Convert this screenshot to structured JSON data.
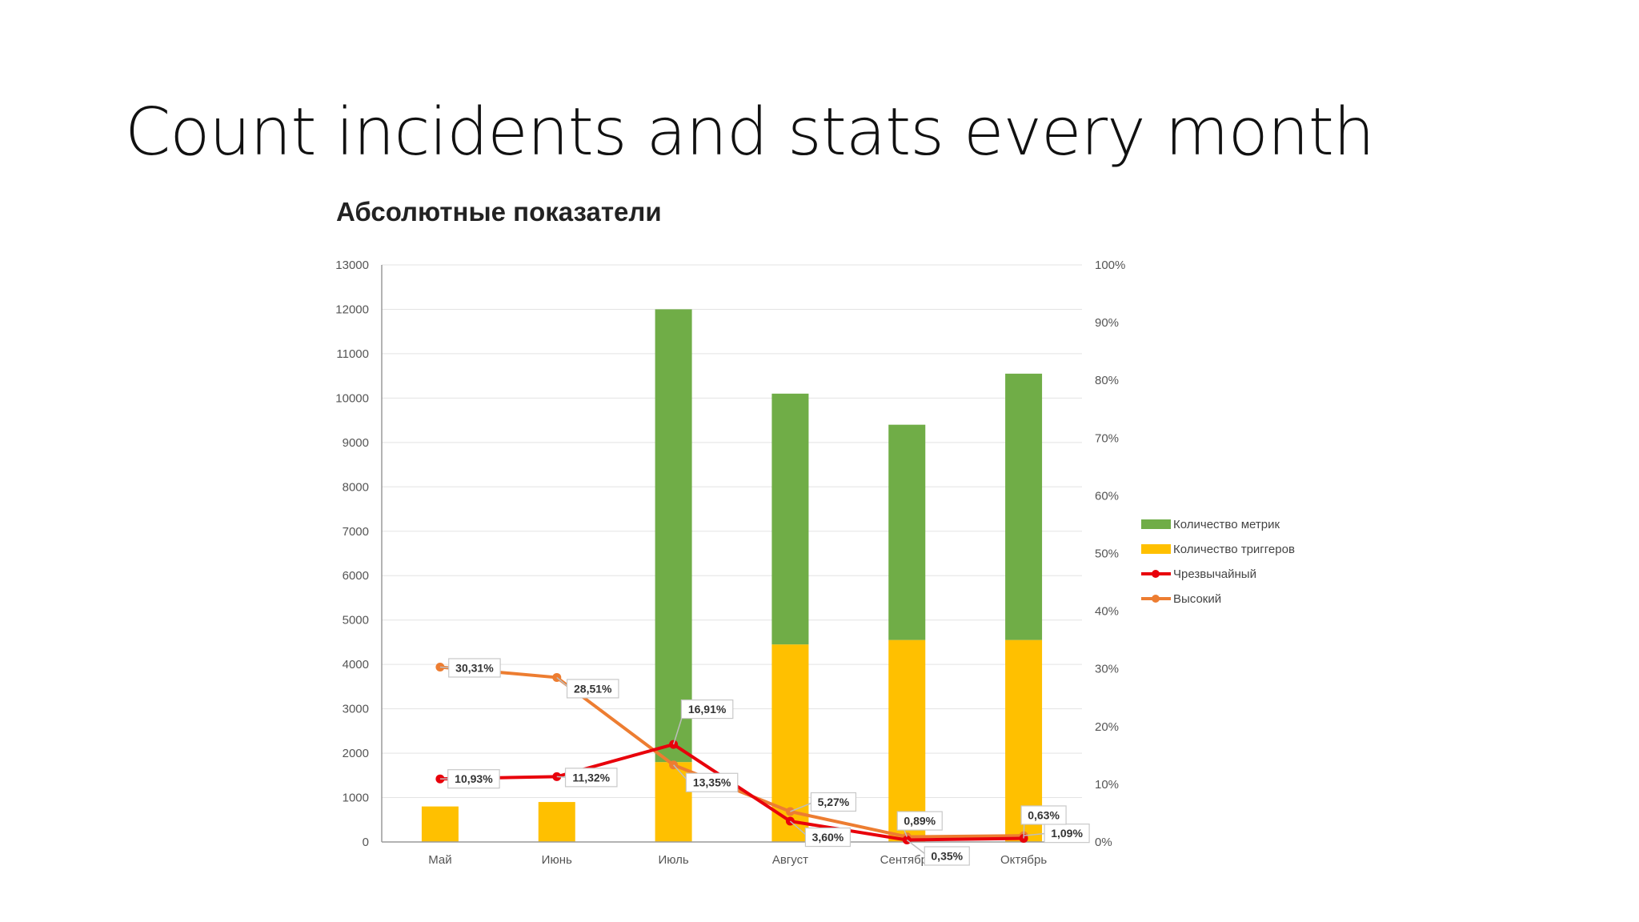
{
  "slide": {
    "title": "Count incidents and stats every month"
  },
  "chart_data": {
    "type": "bar",
    "title": "Абсолютные показатели",
    "categories": [
      "Май",
      "Июнь",
      "Июль",
      "Август",
      "Сентябрь",
      "Октябрь"
    ],
    "ylim": [
      0,
      13000
    ],
    "y2lim": [
      0,
      100
    ],
    "yticks": [
      "0",
      "1000",
      "2000",
      "3000",
      "4000",
      "5000",
      "6000",
      "7000",
      "8000",
      "9000",
      "10000",
      "11000",
      "12000",
      "13000"
    ],
    "y2ticks": [
      "0%",
      "10%",
      "20%",
      "30%",
      "40%",
      "50%",
      "60%",
      "70%",
      "80%",
      "90%",
      "100%"
    ],
    "grid": true,
    "legend_position": "right",
    "series": [
      {
        "name": "Количество метрик",
        "kind": "bar",
        "stack": "total",
        "color": "#70ad47",
        "values": [
          0,
          0,
          10200,
          5650,
          4850,
          6000
        ]
      },
      {
        "name": "Количество триггеров",
        "kind": "bar",
        "stack": "total",
        "color": "#ffc000",
        "values": [
          800,
          900,
          1800,
          4450,
          4550,
          4550
        ]
      },
      {
        "name": "Чрезвычайный",
        "kind": "line",
        "axis": "right",
        "color": "#e8000b",
        "values": [
          10.93,
          11.32,
          16.91,
          3.6,
          0.35,
          0.63
        ],
        "labels": [
          "10,93%",
          "11,32%",
          "16,91%",
          "3,60%",
          "0,35%",
          "0,63%"
        ]
      },
      {
        "name": "Высокий",
        "kind": "line",
        "axis": "right",
        "color": "#ed7d31",
        "values": [
          30.31,
          28.51,
          13.35,
          5.27,
          0.89,
          1.09
        ],
        "labels": [
          "30,31%",
          "28,51%",
          "13,35%",
          "5,27%",
          "0,89%",
          "1,09%"
        ]
      }
    ]
  }
}
